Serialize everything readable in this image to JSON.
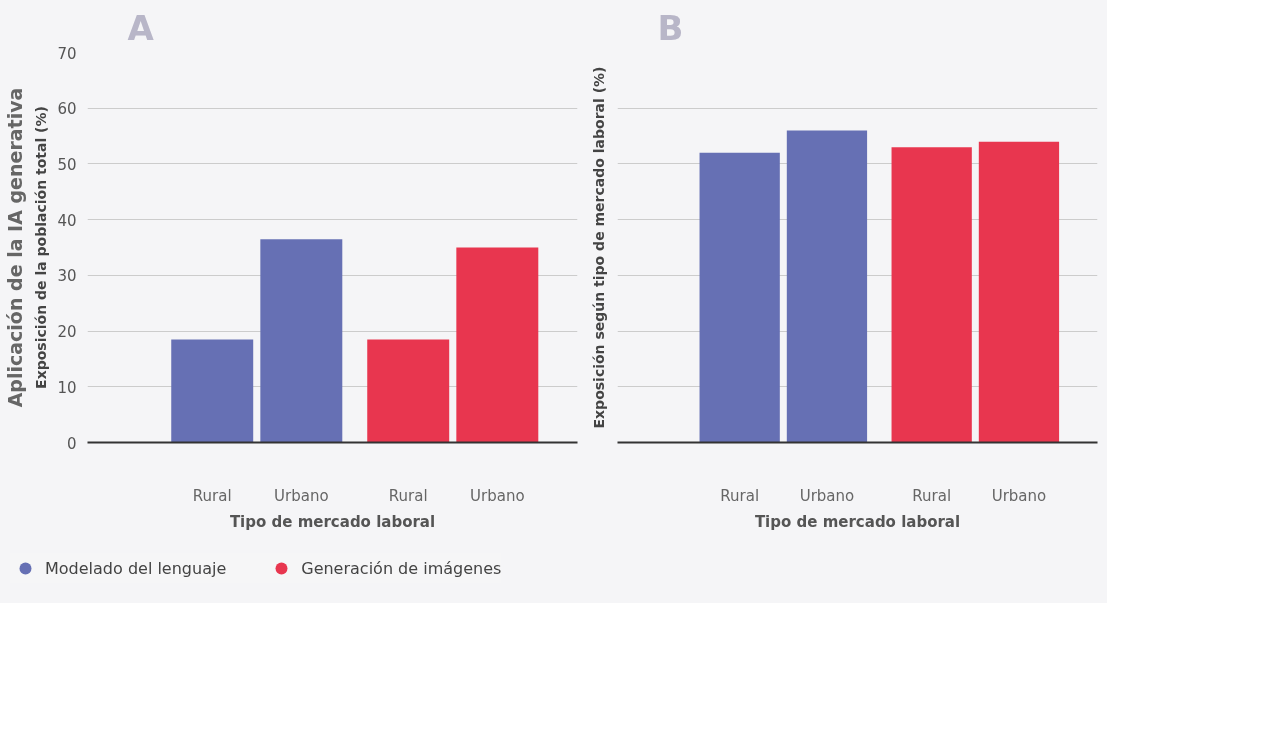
{
  "chart_data": [
    {
      "type": "bar",
      "title": "A",
      "ylabel": "Exposición de la población total (%)",
      "xlabel": "Tipo de mercado laboral",
      "annotations": [
        "Aplicación de la IA generativa"
      ],
      "categories": [
        "Rural",
        "Urbano",
        "Rural",
        "Urbano"
      ],
      "series": [
        {
          "name": "Modelado del lenguaje",
          "color": "#6670b4",
          "values": [
            18.5,
            36.5,
            null,
            null
          ]
        },
        {
          "name": "Generación de imágenes",
          "color": "#e8364f",
          "values": [
            null,
            null,
            18.5,
            35
          ]
        }
      ],
      "ylim": [
        0,
        70
      ],
      "yticks": [
        0,
        10,
        20,
        30,
        40,
        50,
        60,
        70
      ],
      "grid": "y",
      "legend": "bottom"
    },
    {
      "type": "bar",
      "title": "B",
      "ylabel": "Exposición según tipo de mercado laboral (%)",
      "xlabel": "Tipo de mercado laboral",
      "categories": [
        "Rural",
        "Urbano",
        "Rural",
        "Urbano"
      ],
      "series": [
        {
          "color": "#6670b4",
          "values": [
            52,
            56,
            null,
            null
          ]
        },
        {
          "color": "#e8364f",
          "values": [
            null,
            null,
            53,
            54
          ]
        }
      ],
      "ylim": [
        0,
        70
      ],
      "yticks": [
        0,
        10,
        20,
        30,
        40,
        50,
        60,
        70
      ],
      "grid": "y",
      "tick_labels": "x"
    }
  ]
}
